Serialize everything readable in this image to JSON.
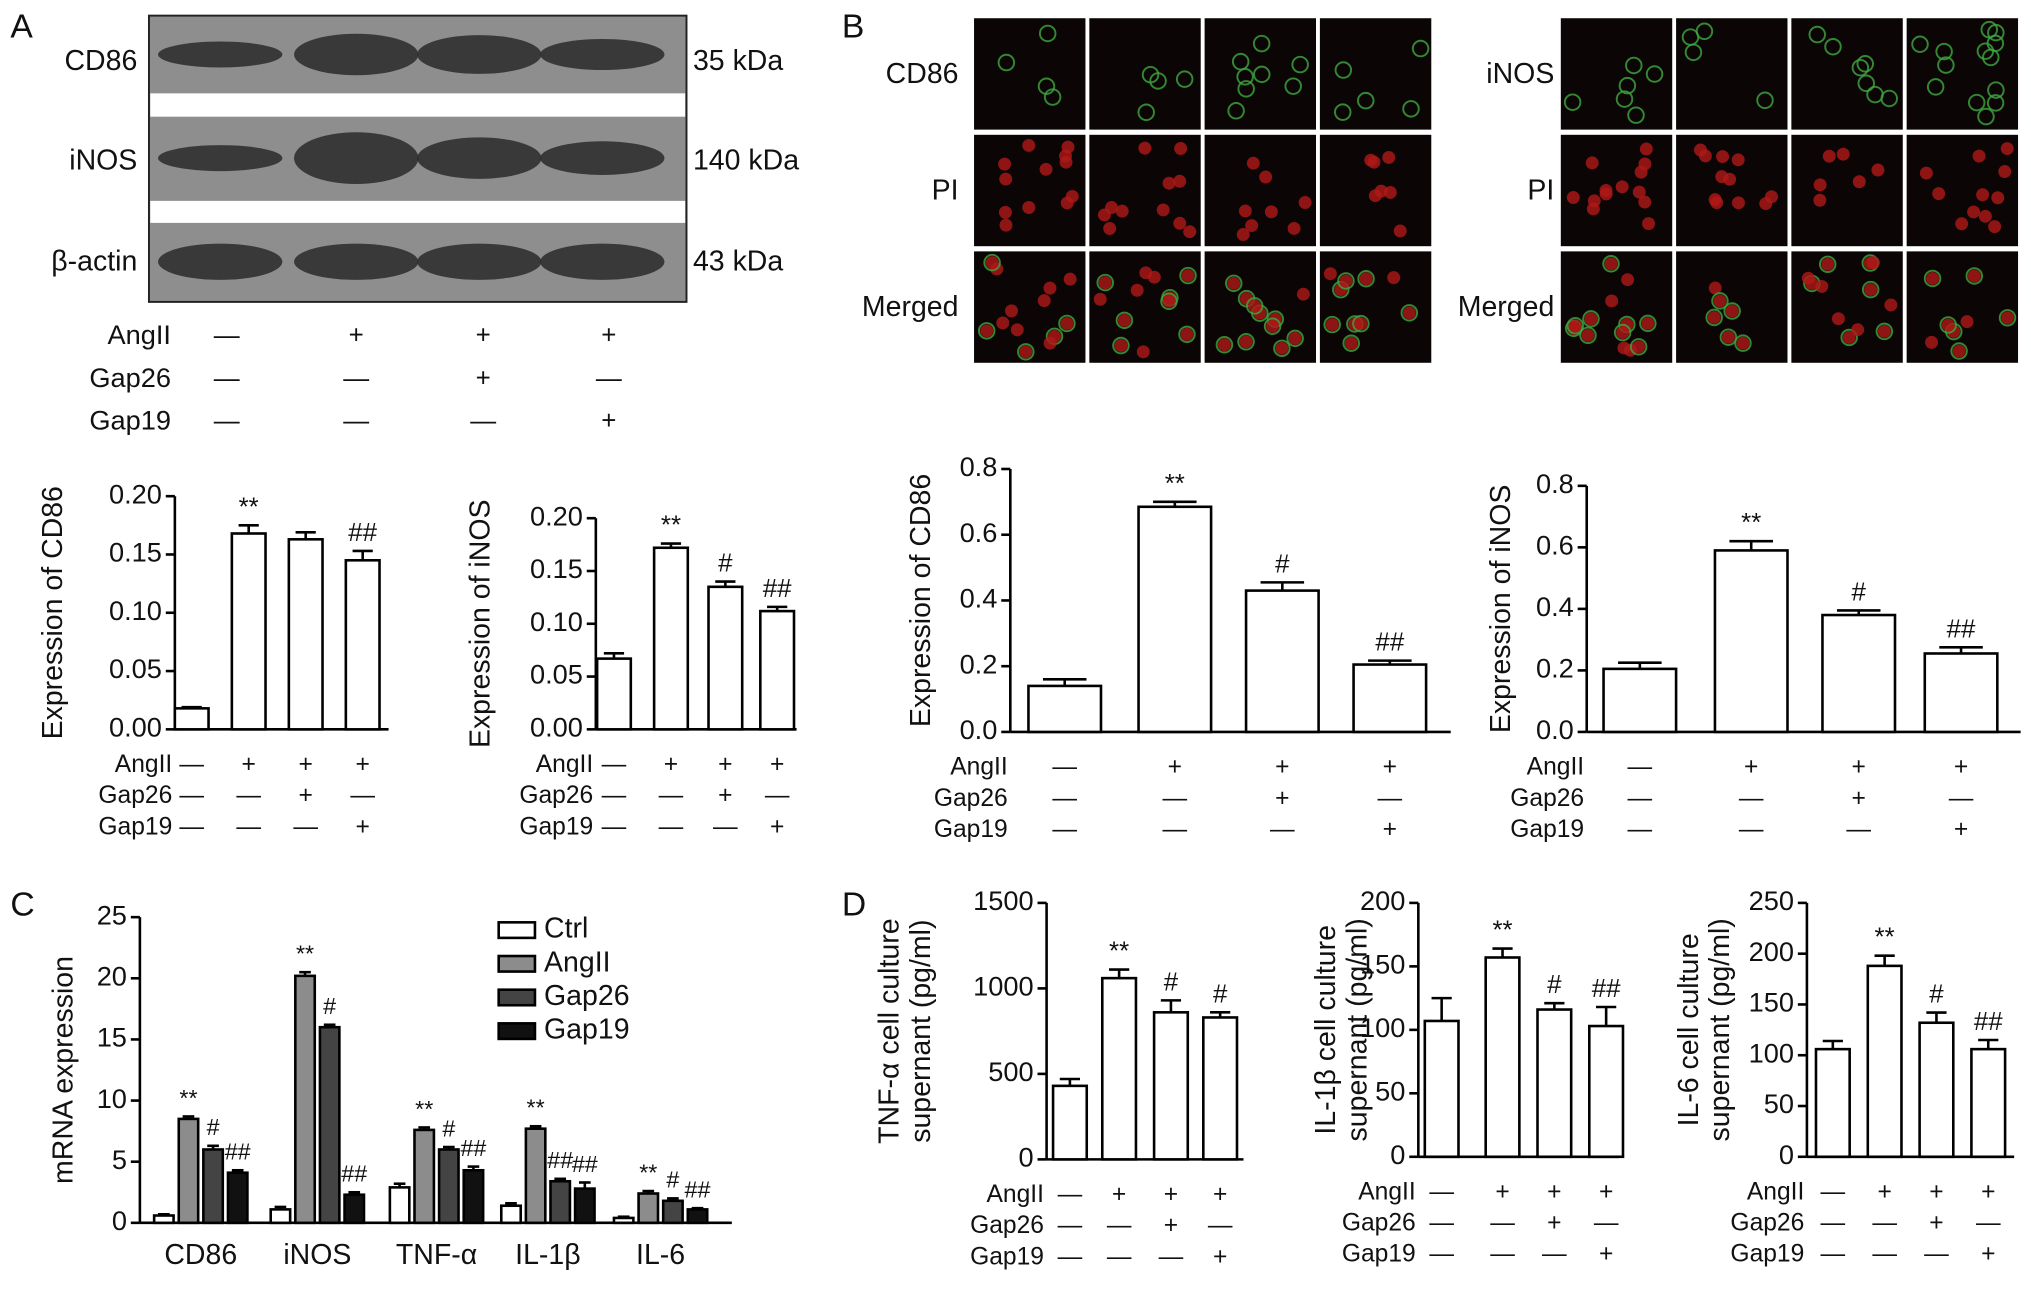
{
  "panel_labels": [
    "A",
    "B",
    "C",
    "D"
  ],
  "treatments": [
    {
      "label": "AngII",
      "signs": [
        "—",
        "+",
        "+",
        "+"
      ]
    },
    {
      "label": "Gap26",
      "signs": [
        "—",
        "—",
        "+",
        "—"
      ]
    },
    {
      "label": "Gap19",
      "signs": [
        "—",
        "—",
        "—",
        "+"
      ]
    }
  ],
  "blot": {
    "bands": [
      {
        "label": "CD86",
        "size": "35 kDa"
      },
      {
        "label": "iNOS",
        "size": "140 kDa"
      },
      {
        "label": "β-actin",
        "size": "43 kDa"
      }
    ]
  },
  "microscopy": [
    {
      "rows": [
        "CD86",
        "PI",
        "Merged"
      ]
    },
    {
      "rows": [
        "iNOS",
        "PI",
        "Merged"
      ]
    }
  ],
  "chart_data": [
    {
      "type": "bar",
      "ylabel": "Expression of CD86",
      "color": "#ffffff",
      "ylim": [
        0,
        0.2
      ],
      "yticks": [
        {
          "value": 0,
          "label": "0.00"
        },
        0.05,
        {
          "value": 0.1,
          "label": "0.10"
        },
        0.15,
        {
          "value": 0.2,
          "label": "0.20"
        }
      ],
      "values": [
        0.018,
        0.168,
        0.163,
        0.145
      ],
      "errors": [
        0.001,
        0.007,
        0.006,
        0.008
      ],
      "annotations": [
        null,
        "**",
        null,
        "##"
      ]
    },
    {
      "type": "bar",
      "ylabel": "Expression of iNOS",
      "color": "#ffffff",
      "ylim": [
        0,
        0.2
      ],
      "yticks": [
        {
          "value": 0,
          "label": "0.00"
        },
        0.05,
        {
          "value": 0.1,
          "label": "0.10"
        },
        0.15,
        {
          "value": 0.2,
          "label": "0.20"
        }
      ],
      "values": [
        0.067,
        0.172,
        0.135,
        0.112
      ],
      "errors": [
        0.005,
        0.004,
        0.005,
        0.004
      ],
      "annotations": [
        null,
        "**",
        "#",
        "##"
      ]
    },
    {
      "type": "bar",
      "ylabel": "Expression of CD86",
      "color": "#ffffff",
      "ylim": [
        0,
        0.8
      ],
      "yticks": [
        {
          "value": 0,
          "label": "0.0"
        },
        0.2,
        0.4,
        0.6,
        0.8
      ],
      "values": [
        0.14,
        0.685,
        0.43,
        0.205
      ],
      "errors": [
        0.02,
        0.015,
        0.025,
        0.012
      ],
      "annotations": [
        null,
        "**",
        "#",
        "##"
      ]
    },
    {
      "type": "bar",
      "ylabel": "Expression of iNOS",
      "color": "#ffffff",
      "ylim": [
        0,
        0.8
      ],
      "yticks": [
        {
          "value": 0,
          "label": "0.0"
        },
        0.2,
        0.4,
        0.6,
        0.8
      ],
      "values": [
        0.205,
        0.59,
        0.38,
        0.255
      ],
      "errors": [
        0.02,
        0.03,
        0.015,
        0.02
      ],
      "annotations": [
        null,
        "**",
        "#",
        "##"
      ]
    },
    {
      "type": "grouped_bar",
      "ylabel": "mRNA expression",
      "legend": true,
      "ylim": [
        0,
        25
      ],
      "yticks": [
        0,
        5,
        10,
        15,
        20,
        25
      ],
      "categories": [
        "CD86",
        "iNOS",
        "TNF-α",
        "IL-1β",
        "IL-6"
      ],
      "series": [
        {
          "name": "Ctrl",
          "color": "#ffffff",
          "values": [
            0.6,
            1.1,
            2.9,
            1.4,
            0.4
          ],
          "errors": [
            0.1,
            0.2,
            0.3,
            0.2,
            0.1
          ],
          "annotations": [
            null,
            null,
            null,
            null,
            null
          ]
        },
        {
          "name": "AngII",
          "color": "#8c8c8c",
          "values": [
            8.5,
            20.2,
            7.6,
            7.7,
            2.4
          ],
          "errors": [
            0.2,
            0.3,
            0.2,
            0.2,
            0.2
          ],
          "annotations": [
            "**",
            "**",
            "**",
            "**",
            "**"
          ]
        },
        {
          "name": "Gap26",
          "color": "#444444",
          "values": [
            6.0,
            16.0,
            6.0,
            3.4,
            1.8
          ],
          "errors": [
            0.3,
            0.2,
            0.2,
            0.2,
            0.2
          ],
          "annotations": [
            "#",
            "#",
            "#",
            "##",
            "#"
          ]
        },
        {
          "name": "Gap19",
          "color": "#111111",
          "values": [
            4.1,
            2.3,
            4.3,
            2.8,
            1.1
          ],
          "errors": [
            0.2,
            0.2,
            0.3,
            0.5,
            0.1
          ],
          "annotations": [
            "##",
            "##",
            "##",
            "##",
            "##"
          ]
        }
      ]
    },
    {
      "type": "bar",
      "ylabel": [
        "TNF-α cell culture",
        "supernant (pg/ml)"
      ],
      "color": "#ffffff",
      "ylim": [
        0,
        1500
      ],
      "yticks": [
        0,
        500,
        1000,
        1500
      ],
      "values": [
        430,
        1060,
        860,
        830
      ],
      "errors": [
        40,
        50,
        70,
        30
      ],
      "annotations": [
        null,
        "**",
        "#",
        "#"
      ]
    },
    {
      "type": "bar",
      "ylabel": [
        "IL-1β cell culture",
        "supernant (pg/ml)"
      ],
      "color": "#ffffff",
      "ylim": [
        0,
        200
      ],
      "yticks": [
        0,
        50,
        100,
        150,
        200
      ],
      "values": [
        107,
        157,
        116,
        103
      ],
      "errors": [
        18,
        7,
        5,
        15
      ],
      "annotations": [
        null,
        "**",
        "#",
        "##"
      ]
    },
    {
      "type": "bar",
      "ylabel": [
        "IL-6 cell culture",
        "supernant (pg/ml)"
      ],
      "color": "#ffffff",
      "ylim": [
        0,
        250
      ],
      "yticks": [
        0,
        50,
        100,
        150,
        200,
        250
      ],
      "values": [
        106,
        188,
        132,
        106
      ],
      "errors": [
        8,
        10,
        10,
        9
      ],
      "annotations": [
        null,
        "**",
        "#",
        "##"
      ]
    }
  ]
}
